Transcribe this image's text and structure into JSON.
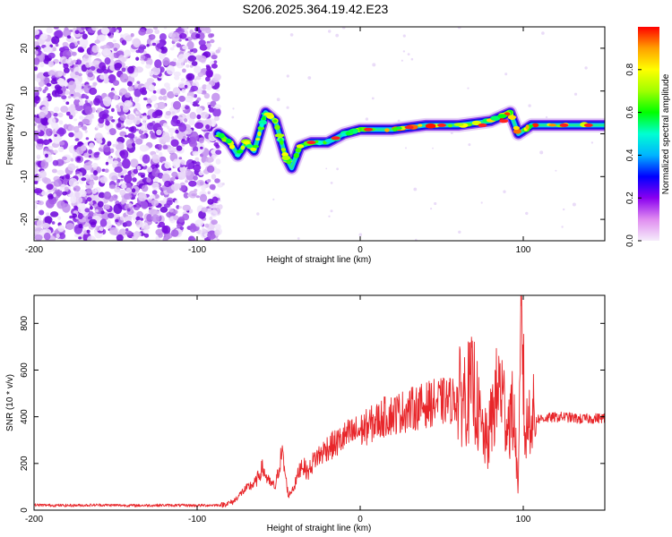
{
  "title": "S206.2025.364.19.42.E23",
  "chart_data": [
    {
      "type": "heatmap",
      "name": "spectrogram",
      "xlabel": "Height of straight line (km)",
      "ylabel": "Frequency (Hz)",
      "xlim": [
        -200,
        150
      ],
      "ylim": [
        -25,
        25
      ],
      "xticks": [
        -200,
        -100,
        0,
        100
      ],
      "yticks": [
        -20,
        -10,
        0,
        10,
        20
      ],
      "ridge": [
        {
          "x": -87,
          "y": 0
        },
        {
          "x": -80,
          "y": -2
        },
        {
          "x": -75,
          "y": -5
        },
        {
          "x": -70,
          "y": -2
        },
        {
          "x": -65,
          "y": -4
        },
        {
          "x": -58,
          "y": 5
        },
        {
          "x": -52,
          "y": 3
        },
        {
          "x": -46,
          "y": -5
        },
        {
          "x": -42,
          "y": -8
        },
        {
          "x": -37,
          "y": -3
        },
        {
          "x": -30,
          "y": -2
        },
        {
          "x": -20,
          "y": -2
        },
        {
          "x": -10,
          "y": 0
        },
        {
          "x": 0,
          "y": 1
        },
        {
          "x": 20,
          "y": 1
        },
        {
          "x": 40,
          "y": 2
        },
        {
          "x": 60,
          "y": 2
        },
        {
          "x": 80,
          "y": 3
        },
        {
          "x": 92,
          "y": 5
        },
        {
          "x": 97,
          "y": 0
        },
        {
          "x": 105,
          "y": 2
        },
        {
          "x": 150,
          "y": 2
        }
      ]
    },
    {
      "type": "line",
      "name": "snr",
      "xlabel": "Height of straight line (km)",
      "ylabel": "SNR (10 * v/v)",
      "xlim": [
        -200,
        150
      ],
      "ylim": [
        0,
        920
      ],
      "xticks": [
        -200,
        -100,
        0,
        100
      ],
      "yticks": [
        0,
        200,
        400,
        600,
        800
      ],
      "series": [
        {
          "name": "SNR",
          "color": "#e8262a",
          "x": [
            -200,
            -180,
            -160,
            -140,
            -120,
            -100,
            -85,
            -78,
            -72,
            -68,
            -64,
            -60,
            -56,
            -52,
            -48,
            -44,
            -40,
            -36,
            -32,
            -28,
            -24,
            -20,
            -16,
            -12,
            -8,
            -4,
            0,
            5,
            10,
            15,
            20,
            25,
            30,
            35,
            40,
            45,
            50,
            55,
            60,
            65,
            70,
            74,
            78,
            82,
            86,
            90,
            94,
            97,
            99,
            101,
            104,
            108,
            115,
            125,
            135,
            150
          ],
          "y": [
            22,
            20,
            22,
            20,
            21,
            20,
            22,
            35,
            80,
            100,
            120,
            180,
            120,
            100,
            250,
            60,
            110,
            200,
            160,
            220,
            240,
            270,
            280,
            300,
            320,
            330,
            340,
            360,
            380,
            400,
            410,
            420,
            430,
            440,
            450,
            460,
            465,
            470,
            480,
            500,
            520,
            350,
            280,
            450,
            540,
            380,
            420,
            90,
            910,
            300,
            420,
            390,
            395,
            400,
            390,
            395
          ]
        }
      ]
    }
  ],
  "colorbar": {
    "label": "Normalized spectral amplitude",
    "ticks": [
      0.0,
      0.2,
      0.4,
      0.6,
      0.8
    ],
    "stops": [
      "#f5ecfb",
      "#e08cf0",
      "#8a00f0",
      "#0000ff",
      "#00b4ff",
      "#00ffd2",
      "#00ff00",
      "#a0ff00",
      "#ffff00",
      "#ffa000",
      "#ff0000"
    ]
  }
}
